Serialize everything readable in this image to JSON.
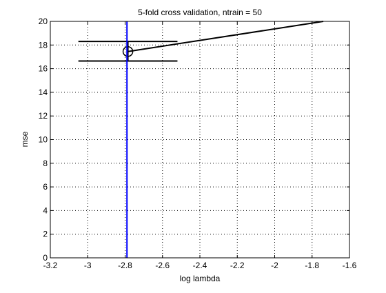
{
  "chart_data": {
    "type": "line",
    "title": "5-fold cross validation, ntrain = 50",
    "xlabel": "log lambda",
    "ylabel": "mse",
    "xlim": [
      -3.2,
      -1.6
    ],
    "ylim": [
      0,
      20
    ],
    "x_ticks": [
      -3.2,
      -3,
      -2.8,
      -2.6,
      -2.4,
      -2.2,
      -2,
      -1.8,
      -1.6
    ],
    "x_tick_labels": [
      "-3.2",
      "-3",
      "-2.8",
      "-2.6",
      "-2.4",
      "-2.2",
      "-2",
      "-1.8",
      "-1.6"
    ],
    "y_ticks": [
      0,
      2,
      4,
      6,
      8,
      10,
      12,
      14,
      16,
      18,
      20
    ],
    "y_tick_labels": [
      "0",
      "2",
      "4",
      "6",
      "8",
      "10",
      "12",
      "14",
      "16",
      "18",
      "20"
    ],
    "grid": true,
    "grid_style": "dotted",
    "series": [
      {
        "color": "#000000",
        "x": [
          -2.785,
          -1.74
        ],
        "y": [
          17.45,
          20.0
        ]
      }
    ],
    "error_bar": {
      "x": -2.785,
      "y": 17.45,
      "lower": 16.65,
      "upper": 18.3,
      "cap_x_range": [
        -3.05,
        -2.52
      ],
      "color": "#000000"
    },
    "highlight_point": {
      "x": -2.785,
      "y": 17.45,
      "marker": "circle",
      "color": "#000000"
    },
    "vertical_line": {
      "x": -2.79,
      "color": "#0000ff"
    }
  }
}
